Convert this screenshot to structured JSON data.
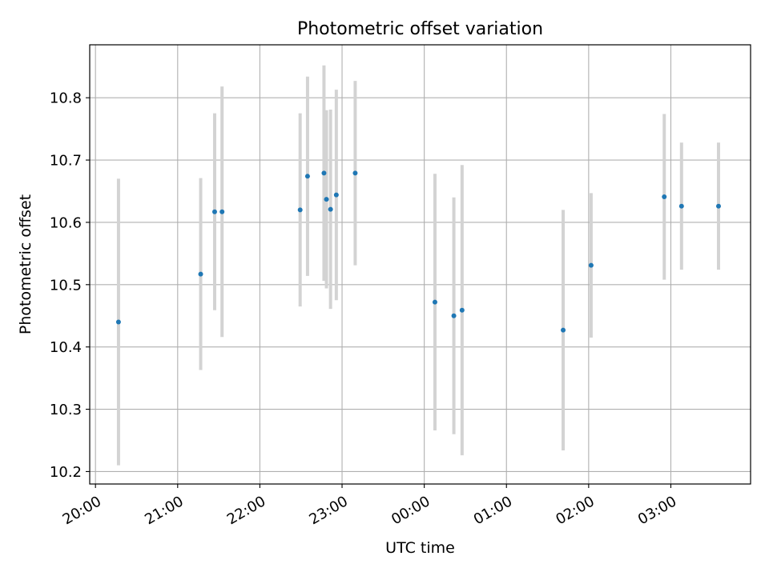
{
  "chart_data": {
    "type": "scatter",
    "title": "Photometric offset variation",
    "xlabel": "UTC time",
    "ylabel": "Photometric offset",
    "xlim": [
      -0.07,
      7.97
    ],
    "ylim": [
      10.18,
      10.885
    ],
    "grid": true,
    "colors": {
      "point": "#1f77b4",
      "errorbar": "#d3d3d3",
      "grid": "#b0b0b0",
      "axes": "#000000"
    },
    "x_ticks": [
      {
        "value": 0,
        "label": "20:00"
      },
      {
        "value": 1,
        "label": "21:00"
      },
      {
        "value": 2,
        "label": "22:00"
      },
      {
        "value": 3,
        "label": "23:00"
      },
      {
        "value": 4,
        "label": "00:00"
      },
      {
        "value": 5,
        "label": "01:00"
      },
      {
        "value": 6,
        "label": "02:00"
      },
      {
        "value": 7,
        "label": "03:00"
      }
    ],
    "y_ticks": [
      {
        "value": 10.2,
        "label": "10.2"
      },
      {
        "value": 10.3,
        "label": "10.3"
      },
      {
        "value": 10.4,
        "label": "10.4"
      },
      {
        "value": 10.5,
        "label": "10.5"
      },
      {
        "value": 10.6,
        "label": "10.6"
      },
      {
        "value": 10.7,
        "label": "10.7"
      },
      {
        "value": 10.8,
        "label": "10.8"
      }
    ],
    "x_unit_note": "x values are hours after 20:00 UTC",
    "points": [
      {
        "x": 0.28,
        "y": 10.44,
        "err": 0.23
      },
      {
        "x": 1.28,
        "y": 10.517,
        "err": 0.154
      },
      {
        "x": 1.45,
        "y": 10.617,
        "err": 0.158
      },
      {
        "x": 1.54,
        "y": 10.617,
        "err": 0.201
      },
      {
        "x": 2.49,
        "y": 10.62,
        "err": 0.155
      },
      {
        "x": 2.58,
        "y": 10.674,
        "err": 0.16
      },
      {
        "x": 2.78,
        "y": 10.679,
        "err": 0.173
      },
      {
        "x": 2.81,
        "y": 10.637,
        "err": 0.143
      },
      {
        "x": 2.86,
        "y": 10.621,
        "err": 0.16
      },
      {
        "x": 2.93,
        "y": 10.644,
        "err": 0.169
      },
      {
        "x": 3.16,
        "y": 10.679,
        "err": 0.148
      },
      {
        "x": 4.13,
        "y": 10.472,
        "err": 0.206
      },
      {
        "x": 4.36,
        "y": 10.45,
        "err": 0.19
      },
      {
        "x": 4.46,
        "y": 10.459,
        "err": 0.233
      },
      {
        "x": 5.69,
        "y": 10.427,
        "err": 0.193
      },
      {
        "x": 6.03,
        "y": 10.531,
        "err": 0.116
      },
      {
        "x": 6.92,
        "y": 10.641,
        "err": 0.133
      },
      {
        "x": 7.13,
        "y": 10.626,
        "err": 0.102
      },
      {
        "x": 7.58,
        "y": 10.626,
        "err": 0.102
      }
    ]
  }
}
